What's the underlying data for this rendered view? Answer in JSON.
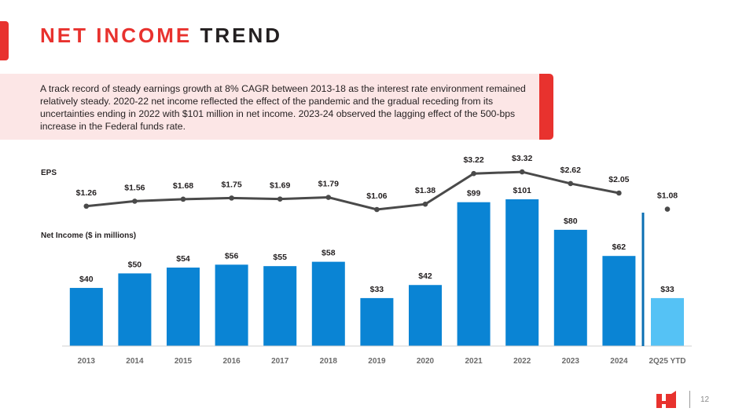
{
  "header": {
    "title_accent": "NET INCOME",
    "title_rest": "TREND"
  },
  "callout": {
    "text": "A track record of steady earnings growth at 8% CAGR between 2013-18 as the interest rate environment remained relatively steady. 2020-22 net income reflected the effect of the pandemic and the gradual receding from its uncertainties ending in 2022 with $101 million in net income. 2023-24 observed the lagging effect of the 500-bps increase in the Federal funds rate."
  },
  "footer": {
    "page_number": "12"
  },
  "colors": {
    "brand_red": "#e8322e",
    "bar_blue": "#0a84d4",
    "bar_light_blue": "#55c2f5",
    "eps_line": "#4a4a4a",
    "divider_blue": "#0a6fb3"
  },
  "chart_data": [
    {
      "type": "line",
      "label": "EPS",
      "categories": [
        "2013",
        "2014",
        "2015",
        "2016",
        "2017",
        "2018",
        "2019",
        "2020",
        "2021",
        "2022",
        "2023",
        "2024",
        "2Q25 YTD"
      ],
      "values": [
        1.26,
        1.56,
        1.68,
        1.75,
        1.69,
        1.79,
        1.06,
        1.38,
        3.22,
        3.32,
        2.62,
        2.05,
        1.08
      ],
      "data_labels": [
        "$1.26",
        "$1.56",
        "$1.68",
        "$1.75",
        "$1.69",
        "$1.79",
        "$1.06",
        "$1.38",
        "$3.22",
        "$3.32",
        "$2.62",
        "$2.05",
        "$1.08"
      ],
      "line_ends_at_index": 11
    },
    {
      "type": "bar",
      "label": "Net Income ($ in millions)",
      "categories": [
        "2013",
        "2014",
        "2015",
        "2016",
        "2017",
        "2018",
        "2019",
        "2020",
        "2021",
        "2022",
        "2023",
        "2024",
        "2Q25 YTD"
      ],
      "values": [
        40,
        50,
        54,
        56,
        55,
        58,
        33,
        42,
        99,
        101,
        80,
        62,
        33
      ],
      "data_labels": [
        "$40",
        "$50",
        "$54",
        "$56",
        "$55",
        "$58",
        "$33",
        "$42",
        "$99",
        "$101",
        "$80",
        "$62",
        "$33"
      ],
      "highlight_last": true,
      "ylim": [
        0,
        101
      ]
    }
  ]
}
